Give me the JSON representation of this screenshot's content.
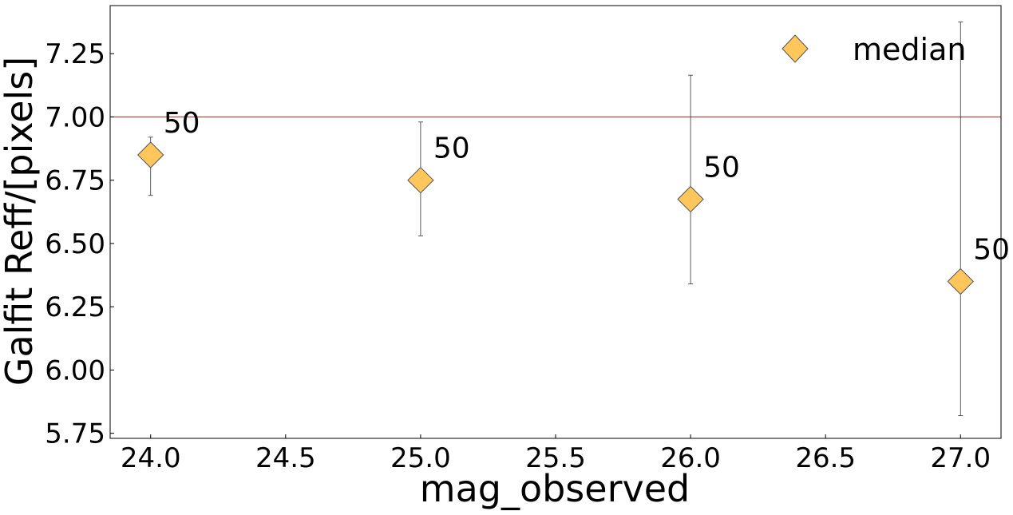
{
  "chart_data": {
    "type": "scatter",
    "xlabel": "mag_observed",
    "ylabel": "Galfit Reff/[pixels]",
    "xlim": [
      23.85,
      27.15
    ],
    "ylim": [
      5.73,
      7.44
    ],
    "xticks": [
      "24.0",
      "24.5",
      "25.0",
      "25.5",
      "26.0",
      "26.5",
      "27.0"
    ],
    "yticks": [
      "5.75",
      "6.00",
      "6.25",
      "6.50",
      "6.75",
      "7.00",
      "7.25"
    ],
    "grid": false,
    "legend_position": "top-right",
    "reference_line": {
      "y": 7.0,
      "color": "#c0392b"
    },
    "series": [
      {
        "name": "median",
        "marker": "diamond",
        "color": "#ffc65c",
        "x": [
          24.0,
          25.0,
          26.0,
          27.0
        ],
        "y": [
          6.85,
          6.75,
          6.675,
          6.35
        ],
        "err_low": [
          6.69,
          6.53,
          6.34,
          5.82
        ],
        "err_high": [
          6.92,
          6.98,
          7.165,
          7.375
        ],
        "labels": [
          "50",
          "50",
          "50",
          "50"
        ]
      }
    ]
  }
}
